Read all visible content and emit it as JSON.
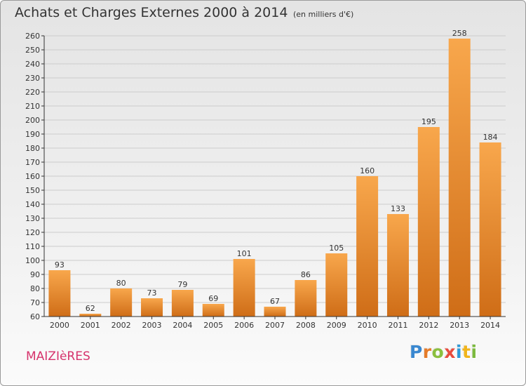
{
  "header": {
    "title": "Achats et Charges Externes 2000 à 2014",
    "subtitle": "(en milliers d'€)"
  },
  "footer": {
    "town": "MAIZIèRES",
    "logo": "Proxiti"
  },
  "colors": {
    "bar_light": "#f8a74c",
    "bar_dark": "#cf6d17",
    "axis": "#333333",
    "grid": "#cccccc",
    "town": "#d6336c",
    "logo_letters": [
      "#3a88d0",
      "#e57c2a",
      "#8bbf3f",
      "#e84c3d",
      "#2e9ad8",
      "#f1b51c",
      "#7cba3e"
    ]
  },
  "chart_data": {
    "type": "bar",
    "title": "Achats et Charges Externes 2000 à 2014",
    "subtitle": "(en milliers d'€)",
    "xlabel": "",
    "ylabel": "",
    "categories": [
      "2000",
      "2001",
      "2002",
      "2003",
      "2004",
      "2005",
      "2006",
      "2007",
      "2008",
      "2009",
      "2010",
      "2011",
      "2012",
      "2013",
      "2014"
    ],
    "values": [
      93,
      62,
      80,
      73,
      79,
      69,
      101,
      67,
      86,
      105,
      160,
      133,
      195,
      258,
      184
    ],
    "ylim": [
      60,
      260
    ],
    "yticks": [
      60,
      70,
      80,
      90,
      100,
      110,
      120,
      130,
      140,
      150,
      160,
      170,
      180,
      190,
      200,
      210,
      220,
      230,
      240,
      250,
      260
    ],
    "grid": true,
    "legend": "none"
  }
}
